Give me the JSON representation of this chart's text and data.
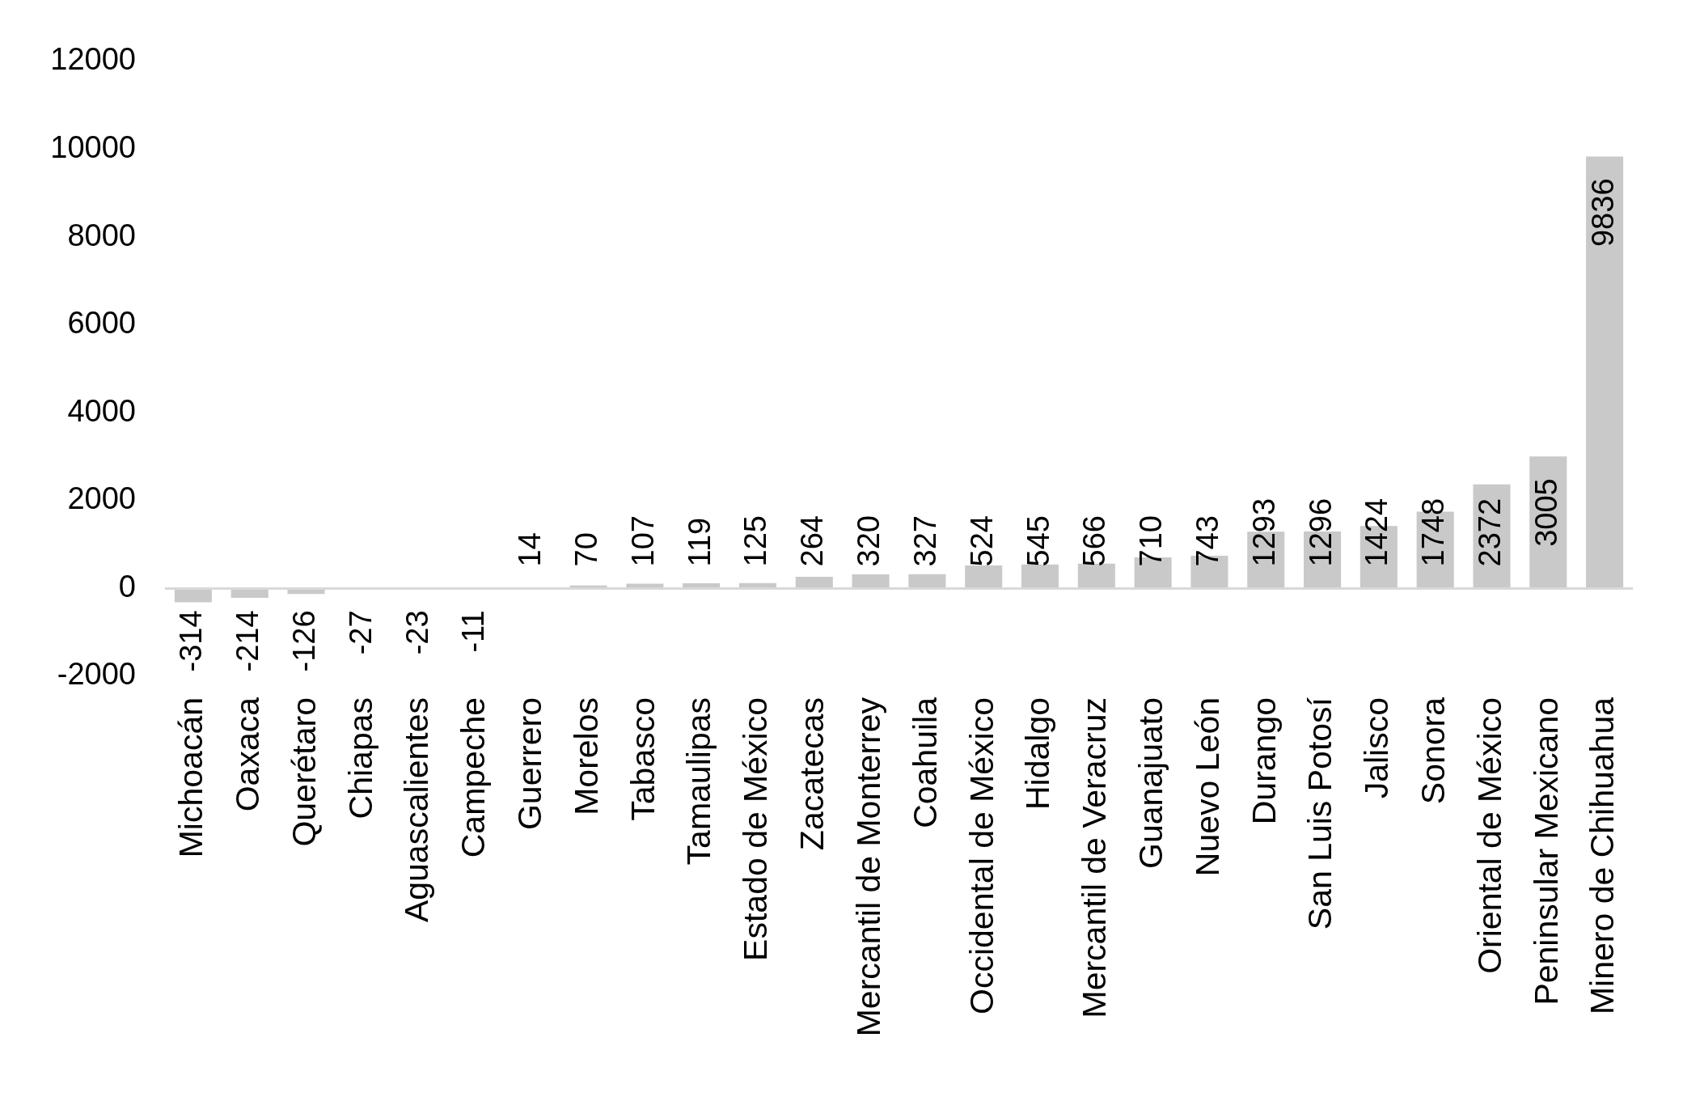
{
  "chart_data": {
    "type": "bar",
    "categories": [
      "Michoacán",
      "Oaxaca",
      "Querétaro",
      "Chiapas",
      "Aguascalientes",
      "Campeche",
      "Guerrero",
      "Morelos",
      "Tabasco",
      "Tamaulipas",
      "Estado de México",
      "Zacatecas",
      "Mercantil de Monterrey",
      "Coahuila",
      "Occidental de México",
      "Hidalgo",
      "Mercantil de Veracruz",
      "Guanajuato",
      "Nuevo León",
      "Durango",
      "San Luis Potosí",
      "Jalisco",
      "Sonora",
      "Oriental de México",
      "Peninsular Mexicano",
      "Minero de Chihuahua"
    ],
    "values": [
      -314,
      -214,
      -126,
      -27,
      -23,
      -11,
      14,
      70,
      107,
      119,
      125,
      264,
      320,
      327,
      524,
      545,
      566,
      710,
      743,
      1293,
      1296,
      1424,
      1748,
      2372,
      3005,
      9836
    ],
    "color": "#c9c9c9",
    "ylim": [
      -2000,
      12000
    ],
    "yticks": [
      -2000,
      0,
      2000,
      4000,
      6000,
      8000,
      10000,
      12000
    ],
    "data_labels": true
  }
}
